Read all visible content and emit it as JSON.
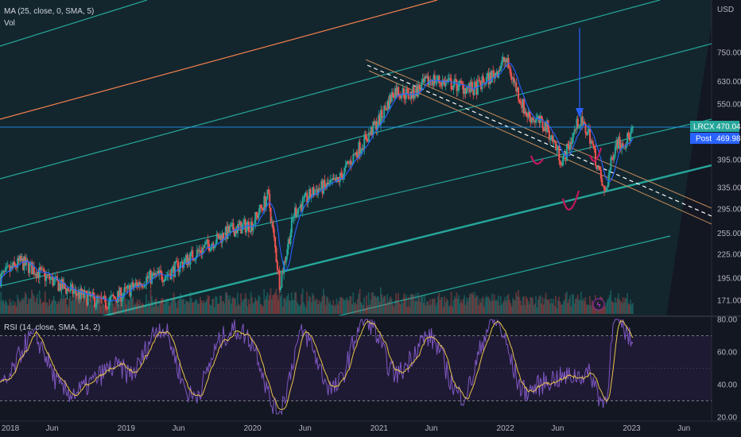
{
  "legend": {
    "ma": "MA (25, close, 0, SMA, 5)",
    "vol": "Vol",
    "rsi": "RSI (14, close, SMA, 14, 2)"
  },
  "price_axis": {
    "currency": "USD",
    "ticks": [
      "750.00",
      "630.00",
      "550.00",
      "470.04",
      "395.00",
      "335.00",
      "295.00",
      "255.00",
      "225.00",
      "195.00",
      "171.00"
    ],
    "tick_values": [
      750,
      630,
      550,
      470.04,
      395,
      335,
      295,
      255,
      225,
      195,
      171
    ],
    "scale": "log",
    "range": [
      160,
      1000
    ]
  },
  "badges": {
    "symbol": "LRCX",
    "last_price": "470.04",
    "post_label": "Post",
    "post_price": "469.98"
  },
  "rsi_axis": {
    "ticks": [
      "80.00",
      "60.00",
      "40.00",
      "20.00"
    ],
    "tick_values": [
      80,
      60,
      40,
      20
    ],
    "range": [
      20,
      80
    ],
    "upper_band": 70,
    "lower_band": 30
  },
  "time_axis": {
    "labels": [
      "2018",
      "Jun",
      "2019",
      "Jun",
      "2020",
      "Jun",
      "2021",
      "Jun",
      "2022",
      "Jun",
      "2023",
      "Jun"
    ],
    "dates": [
      "2018-01-01",
      "2018-06-01",
      "2019-01-01",
      "2019-06-01",
      "2020-01-01",
      "2020-06-01",
      "2021-01-01",
      "2021-06-01",
      "2022-01-01",
      "2022-06-01",
      "2023-01-01",
      "2023-06-01"
    ]
  },
  "colors": {
    "background": "#131722",
    "candle_up": "#26a69a",
    "candle_down": "#ef5350",
    "ma_line": "#2962ff",
    "rsi_line": "#7e57c2",
    "rsi_ma": "#e8c54d",
    "channel": "#26a69a",
    "orange_line": "#f57f4c",
    "dashed_line": "#ffffff",
    "horizontal_line": "#2196f3",
    "annotation_red": "#c2185b",
    "arrow": "#2962ff",
    "badge_bg": "#26a69a",
    "post_bg": "#2962ff"
  },
  "chart_data": {
    "type": "line",
    "title": "",
    "x_unit": "date",
    "y_scale": "log",
    "ylim": [
      160,
      1000
    ],
    "series": [
      {
        "name": "",
        "x": [
          "2018-01-01",
          "2018-03-01",
          "2018-05-01",
          "2018-07-01",
          "2018-09-01",
          "2018-11-01",
          "2019-01-01",
          "2019-03-01",
          "2019-05-01",
          "2019-07-01",
          "2019-09-01",
          "2019-11-01",
          "2020-01-01",
          "2020-02-15",
          "2020-03-20",
          "2020-05-01",
          "2020-07-01",
          "2020-09-01",
          "2020-11-01",
          "2021-01-01",
          "2021-02-15",
          "2021-04-01",
          "2021-06-01",
          "2021-08-01",
          "2021-10-01",
          "2021-12-01",
          "2022-01-01",
          "2022-03-01",
          "2022-05-01",
          "2022-06-15",
          "2022-08-01",
          "2022-09-01",
          "2022-10-15",
          "2022-11-15",
          "2022-12-15",
          "2023-01-05"
        ],
        "values": [
          195,
          215,
          200,
          185,
          175,
          168,
          180,
          195,
          200,
          220,
          240,
          260,
          270,
          320,
          188,
          290,
          330,
          345,
          420,
          500,
          600,
          580,
          640,
          620,
          600,
          660,
          720,
          520,
          480,
          390,
          500,
          460,
          320,
          440,
          440,
          470
        ]
      }
    ],
    "rsi": {
      "x": [
        "2018-01-01",
        "2018-04-01",
        "2018-07-01",
        "2018-10-01",
        "2019-01-01",
        "2019-04-01",
        "2019-07-01",
        "2019-10-01",
        "2020-01-01",
        "2020-03-20",
        "2020-06-01",
        "2020-09-01",
        "2020-12-01",
        "2021-03-01",
        "2021-06-01",
        "2021-09-01",
        "2021-12-01",
        "2022-03-01",
        "2022-06-01",
        "2022-09-01",
        "2022-10-15",
        "2022-11-15",
        "2023-01-05"
      ],
      "values": [
        48,
        60,
        45,
        35,
        55,
        68,
        40,
        62,
        70,
        25,
        65,
        45,
        72,
        55,
        60,
        42,
        70,
        45,
        35,
        55,
        32,
        72,
        60
      ]
    }
  }
}
